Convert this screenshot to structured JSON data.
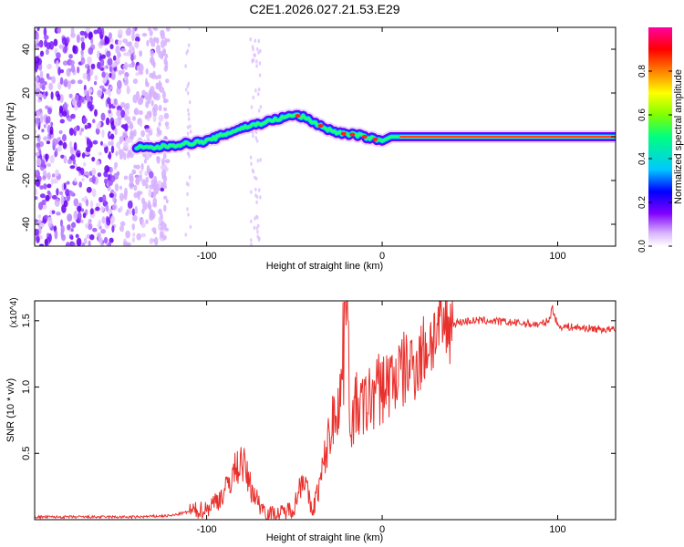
{
  "title": "C2E1.2026.027.21.53.E29",
  "chart_data": [
    {
      "type": "heatmap",
      "description_kind": "spectrogram",
      "xlabel": "Height of straight line (km)",
      "ylabel": "Frequency (Hz)",
      "xlim": [
        -198,
        133
      ],
      "ylim": [
        -50,
        50
      ],
      "xticks": [
        -100,
        0,
        100
      ],
      "xtick_labels": [
        "-100",
        "0",
        "100"
      ],
      "yticks": [
        -40,
        -20,
        0,
        20,
        40
      ],
      "ytick_labels": [
        "-40",
        "-20",
        "0",
        "20",
        "40"
      ],
      "colorbar": {
        "label": "Normalized spectral amplitude",
        "range": [
          0,
          1
        ],
        "ticks": [
          0,
          0.2,
          0.4,
          0.6,
          0.8
        ],
        "tick_labels": [
          "0.0",
          "0.2",
          "0.4",
          "0.6",
          "0.8"
        ],
        "colormap": [
          "#ffffff",
          "#d9b3ff",
          "#8000ff",
          "#0000ff",
          "#00c8ff",
          "#00ff80",
          "#80ff00",
          "#ffff00",
          "#ff8000",
          "#ff0000",
          "#ff00a0"
        ]
      },
      "trace": {
        "x": [
          -140,
          -130,
          -120,
          -110,
          -100,
          -90,
          -80,
          -70,
          -60,
          -50,
          -45,
          -40,
          -35,
          -30,
          -25,
          -20,
          -15,
          -10,
          -5,
          0,
          5,
          10,
          20,
          40,
          60,
          80,
          100,
          120,
          133
        ],
        "y": [
          -5,
          -5,
          -4,
          -3,
          -2,
          1,
          4,
          6,
          8,
          10,
          9,
          7,
          5,
          3,
          2,
          1,
          1,
          0,
          -1,
          -2,
          0,
          0,
          0,
          0,
          0,
          0,
          0,
          0,
          0
        ]
      },
      "noise_region_x": [
        -198,
        -122
      ]
    },
    {
      "type": "line",
      "xlabel": "Height of straight line (km)",
      "ylabel": "SNR (10 * v/v)",
      "y_multiplier": "(x10^4)",
      "xlim": [
        -198,
        133
      ],
      "ylim": [
        0,
        1.65
      ],
      "xticks": [
        -100,
        0,
        100
      ],
      "xtick_labels": [
        "-100",
        "0",
        "100"
      ],
      "yticks": [
        0.5,
        1.0,
        1.5
      ],
      "ytick_labels": [
        "0.5",
        "1.0",
        "1.5"
      ],
      "series": [
        {
          "name": "SNR",
          "color": "#e8302c",
          "x": [
            -198,
            -140,
            -120,
            -110,
            -100,
            -90,
            -85,
            -80,
            -75,
            -70,
            -65,
            -60,
            -55,
            -50,
            -45,
            -40,
            -35,
            -30,
            -25,
            -22,
            -20,
            -18,
            -15,
            -10,
            -5,
            0,
            5,
            10,
            15,
            20,
            25,
            30,
            35,
            40,
            50,
            60,
            70,
            80,
            90,
            95,
            97,
            100,
            110,
            120,
            133
          ],
          "y": [
            0.02,
            0.02,
            0.03,
            0.06,
            0.08,
            0.2,
            0.35,
            0.45,
            0.25,
            0.12,
            0.05,
            0.04,
            0.06,
            0.1,
            0.35,
            0.05,
            0.3,
            0.65,
            0.9,
            1.1,
            1.62,
            0.7,
            0.85,
            0.85,
            0.95,
            1.0,
            1.05,
            1.1,
            1.15,
            1.2,
            1.3,
            1.4,
            1.45,
            1.48,
            1.5,
            1.5,
            1.49,
            1.48,
            1.47,
            1.5,
            1.6,
            1.46,
            1.45,
            1.44,
            1.43
          ]
        }
      ]
    }
  ]
}
